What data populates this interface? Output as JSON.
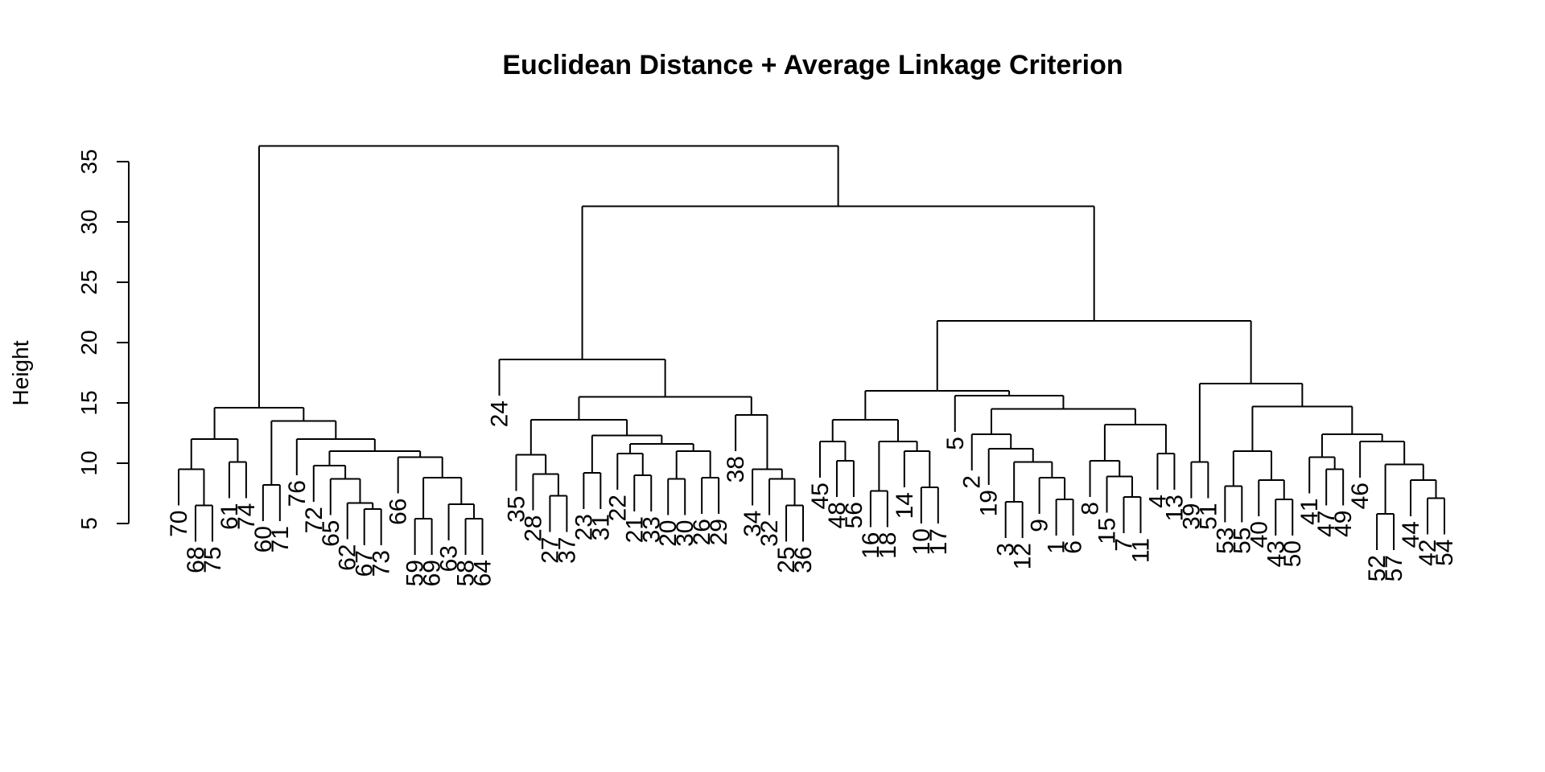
{
  "chart_data": {
    "type": "dendrogram",
    "title": "Euclidean Distance + Average Linkage Criterion",
    "ylabel": "Height",
    "xlabel": "",
    "ylim": [
      5,
      35
    ],
    "yticks": [
      5,
      10,
      15,
      20,
      25,
      30,
      35
    ],
    "grid": false,
    "line_color": "#000000",
    "leaves": [
      "70",
      "68",
      "75",
      "61",
      "74",
      "60",
      "71",
      "76",
      "72",
      "65",
      "62",
      "67",
      "73",
      "66",
      "59",
      "69",
      "63",
      "58",
      "64",
      "24",
      "35",
      "28",
      "27",
      "37",
      "23",
      "31",
      "22",
      "21",
      "33",
      "20",
      "30",
      "26",
      "29",
      "38",
      "34",
      "32",
      "25",
      "36",
      "45",
      "48",
      "56",
      "16",
      "18",
      "14",
      "10",
      "17",
      "5",
      "2",
      "19",
      "3",
      "12",
      "9",
      "1",
      "6",
      "8",
      "15",
      "7",
      "11",
      "4",
      "13",
      "39",
      "51",
      "53",
      "55",
      "40",
      "43",
      "50",
      "41",
      "47",
      "49",
      "46",
      "52",
      "57",
      "44",
      "42",
      "54"
    ],
    "tree": [
      36.3,
      [
        14.6,
        [
          12.0,
          [
            9.5,
            "70",
            [
              6.5,
              "68",
              "75"
            ]
          ],
          [
            10.1,
            "61",
            "74"
          ]
        ],
        [
          13.5,
          [
            8.2,
            "60",
            "71"
          ],
          [
            12.0,
            "76",
            [
              11.0,
              [
                9.8,
                "72",
                [
                  8.7,
                  "65",
                  [
                    6.7,
                    "62",
                    [
                      6.2,
                      "67",
                      "73"
                    ]
                  ]
                ]
              ],
              [
                10.5,
                "66",
                [
                  8.8,
                  [
                    5.4,
                    "59",
                    "69"
                  ],
                  [
                    6.6,
                    "63",
                    [
                      5.4,
                      "58",
                      "64"
                    ]
                  ]
                ]
              ]
            ]
          ]
        ]
      ],
      [
        31.3,
        [
          18.6,
          "24",
          [
            15.5,
            [
              13.6,
              [
                10.7,
                "35",
                [
                  9.1,
                  "28",
                  [
                    7.3,
                    "27",
                    "37"
                  ]
                ]
              ],
              [
                12.3,
                [
                  9.2,
                  "23",
                  "31"
                ],
                [
                  11.6,
                  [
                    10.8,
                    "22",
                    [
                      9.0,
                      "21",
                      "33"
                    ]
                  ],
                  [
                    11.0,
                    [
                      8.7,
                      "20",
                      "30"
                    ],
                    [
                      8.8,
                      "26",
                      "29"
                    ]
                  ]
                ]
              ]
            ],
            [
              14.0,
              "38",
              [
                9.5,
                "34",
                [
                  8.7,
                  "32",
                  [
                    6.5,
                    "25",
                    "36"
                  ]
                ]
              ]
            ]
          ]
        ],
        [
          21.8,
          [
            16.0,
            [
              13.6,
              [
                11.8,
                "45",
                [
                  10.2,
                  "48",
                  "56"
                ]
              ],
              [
                11.8,
                [
                  7.7,
                  "16",
                  "18"
                ],
                [
                  11.0,
                  "14",
                  [
                    8.0,
                    "10",
                    "17"
                  ]
                ]
              ]
            ],
            [
              15.6,
              "5",
              [
                14.5,
                [
                  12.4,
                  "2",
                  [
                    11.2,
                    "19",
                    [
                      10.1,
                      [
                        6.8,
                        "3",
                        "12"
                      ],
                      [
                        8.8,
                        "9",
                        [
                          7.0,
                          "1",
                          "6"
                        ]
                      ]
                    ]
                  ]
                ],
                [
                  13.2,
                  [
                    10.2,
                    "8",
                    [
                      8.9,
                      "15",
                      [
                        7.2,
                        "7",
                        "11"
                      ]
                    ]
                  ],
                  [
                    10.8,
                    "4",
                    "13"
                  ]
                ]
              ]
            ]
          ],
          [
            16.6,
            [
              10.1,
              "39",
              "51"
            ],
            [
              14.7,
              [
                11.0,
                [
                  8.1,
                  "53",
                  "55"
                ],
                [
                  8.6,
                  "40",
                  [
                    7.0,
                    "43",
                    "50"
                  ]
                ]
              ],
              [
                12.4,
                [
                  10.5,
                  "41",
                  [
                    9.5,
                    "47",
                    "49"
                  ]
                ],
                [
                  11.8,
                  "46",
                  [
                    9.9,
                    [
                      5.8,
                      "52",
                      "57"
                    ],
                    [
                      8.6,
                      "44",
                      [
                        7.1,
                        "42",
                        "54"
                      ]
                    ]
                  ]
                ]
              ]
            ]
          ]
        ]
      ]
    ]
  }
}
